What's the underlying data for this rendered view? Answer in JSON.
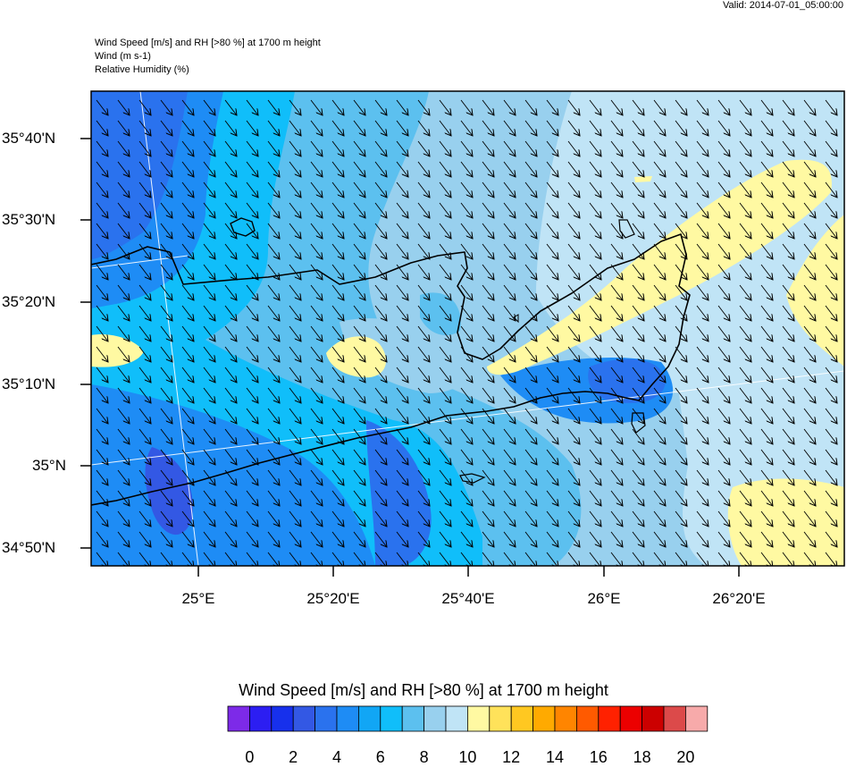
{
  "header": {
    "valid": "Valid: 2014-07-01_05:00:00",
    "line1": "Wind Speed [m/s] and RH [>80 %] at 1700 m height",
    "line2": "Wind   (m s-1)",
    "line3": "Relative Humidity   (%)"
  },
  "map": {
    "lat_labels": [
      "35°40'N",
      "35°30'N",
      "35°20'N",
      "35°10'N",
      "35°N",
      "34°50'N"
    ],
    "lon_labels": [
      "25°E",
      "25°20'E",
      "25°40'E",
      "26°E",
      "26°20'E"
    ]
  },
  "colorbar": {
    "title": "Wind Speed [m/s] and RH [>80 %] at 1700 m height",
    "labels": [
      "0",
      "2",
      "4",
      "6",
      "8",
      "10",
      "12",
      "14",
      "16",
      "18",
      "20"
    ],
    "colors": [
      "#7d2ae8",
      "#2c1ef2",
      "#1730ec",
      "#3358e4",
      "#2a72ee",
      "#1e8cf5",
      "#11a6f5",
      "#10befa",
      "#5cc0ef",
      "#98d0ee",
      "#c0e4f6",
      "#fff9a2",
      "#ffe25a",
      "#ffc821",
      "#ffaa00",
      "#ff8500",
      "#ff5a00",
      "#ff2100",
      "#ec0000",
      "#cc0000",
      "#dc4a4a",
      "#f7aaaa"
    ]
  }
}
